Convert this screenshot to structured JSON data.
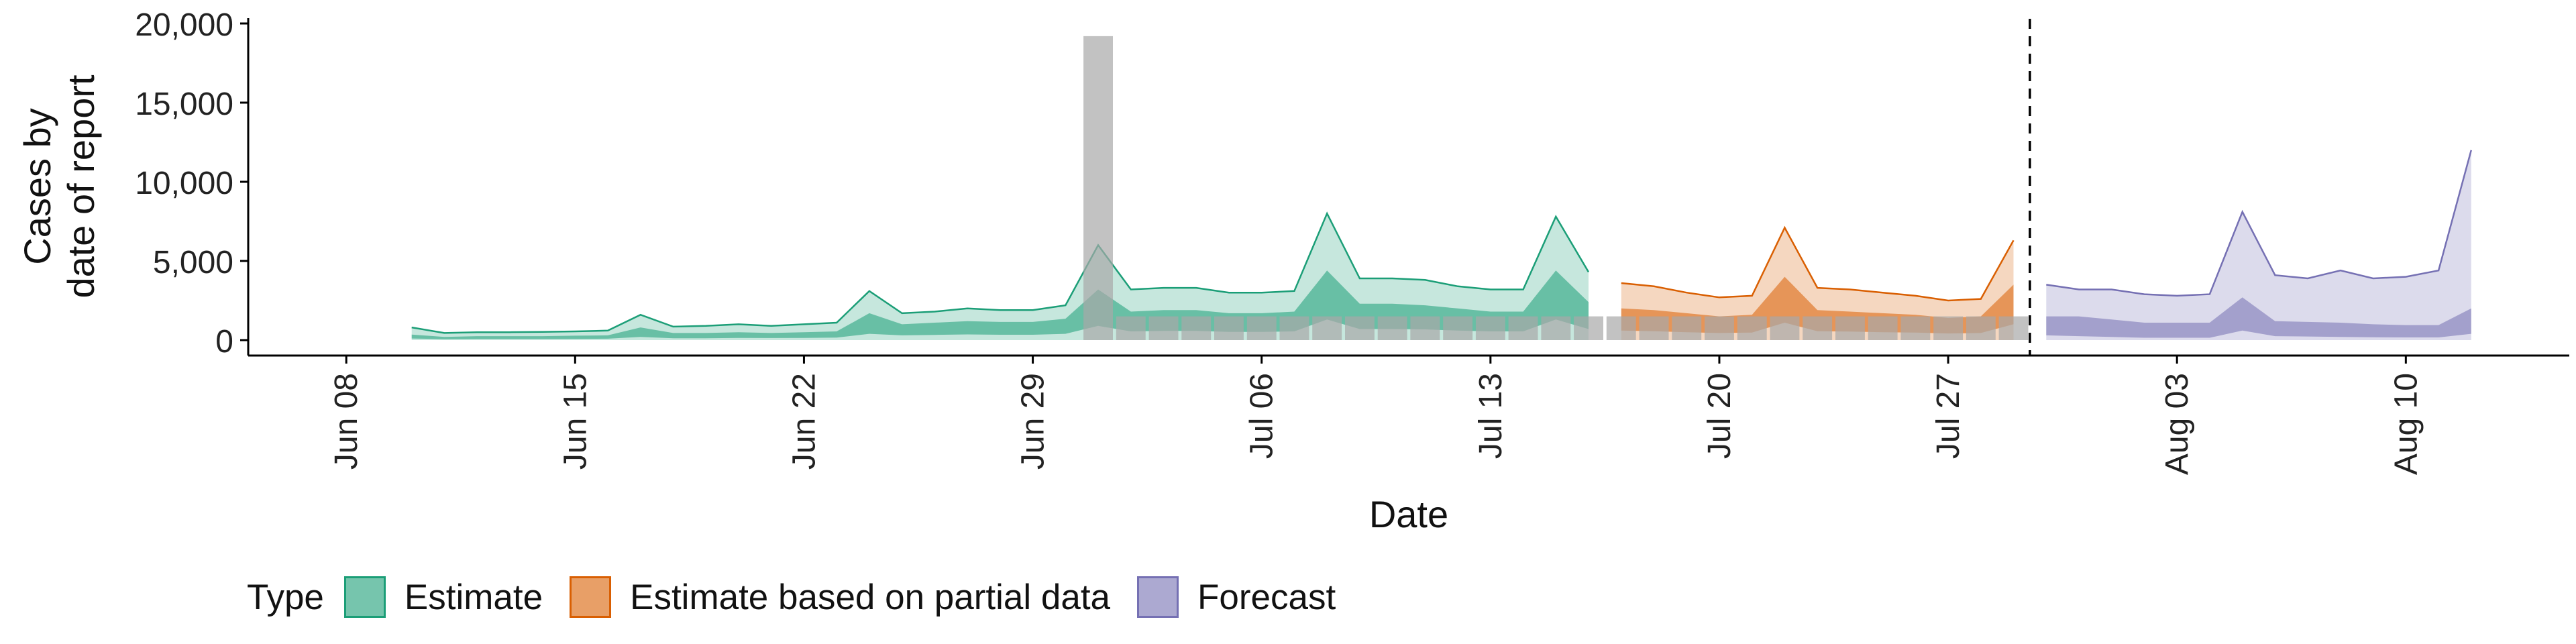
{
  "chart_data": {
    "type": "area",
    "xlabel": "Date",
    "ylabel": [
      "Cases by",
      "date of report"
    ],
    "ylim": [
      0,
      20000
    ],
    "xlim": [
      "2020-06-05",
      "2020-08-15"
    ],
    "y_ticks": [
      0,
      5000,
      10000,
      15000,
      20000
    ],
    "y_tick_labels": [
      "0",
      "5,000",
      "10,000",
      "15,000",
      "20,000"
    ],
    "x_ticks": [
      "2020-06-08",
      "2020-06-15",
      "2020-06-22",
      "2020-06-29",
      "2020-07-06",
      "2020-07-13",
      "2020-07-20",
      "2020-07-27",
      "2020-08-03",
      "2020-08-10"
    ],
    "x_tick_labels": [
      "Jun 08",
      "Jun 15",
      "Jun 22",
      "Jun 29",
      "Jul 06",
      "Jul 13",
      "Jul 20",
      "Jul 27",
      "Aug 03",
      "Aug 10"
    ],
    "grid": false,
    "legend": {
      "title": "Type",
      "position": "bottom",
      "entries": [
        "Estimate",
        "Estimate based on partial data",
        "Forecast"
      ]
    },
    "vline_date": "2020-07-29",
    "observed_bars": {
      "dates": [
        "2020-07-01",
        "2020-07-02",
        "2020-07-03",
        "2020-07-04",
        "2020-07-05",
        "2020-07-06",
        "2020-07-07",
        "2020-07-08",
        "2020-07-09",
        "2020-07-10",
        "2020-07-11",
        "2020-07-12",
        "2020-07-13",
        "2020-07-14",
        "2020-07-15",
        "2020-07-16",
        "2020-07-17",
        "2020-07-18",
        "2020-07-19",
        "2020-07-20",
        "2020-07-21",
        "2020-07-22",
        "2020-07-23",
        "2020-07-24",
        "2020-07-25",
        "2020-07-26",
        "2020-07-27",
        "2020-07-28",
        "2020-07-29"
      ],
      "values": [
        19200,
        1500,
        1500,
        1500,
        1500,
        1500,
        1500,
        1500,
        1500,
        1500,
        1500,
        1500,
        1500,
        1500,
        1500,
        1500,
        1500,
        1500,
        1500,
        1500,
        1500,
        1500,
        1500,
        1500,
        1500,
        1500,
        1500,
        1500,
        1500
      ]
    },
    "series": [
      {
        "name": "Estimate",
        "color": "#1b9e77",
        "dates": [
          "2020-06-10",
          "2020-06-11",
          "2020-06-12",
          "2020-06-13",
          "2020-06-14",
          "2020-06-15",
          "2020-06-16",
          "2020-06-17",
          "2020-06-18",
          "2020-06-19",
          "2020-06-20",
          "2020-06-21",
          "2020-06-22",
          "2020-06-23",
          "2020-06-24",
          "2020-06-25",
          "2020-06-26",
          "2020-06-27",
          "2020-06-28",
          "2020-06-29",
          "2020-06-30",
          "2020-07-01",
          "2020-07-02",
          "2020-07-03",
          "2020-07-04",
          "2020-07-05",
          "2020-07-06",
          "2020-07-07",
          "2020-07-08",
          "2020-07-09",
          "2020-07-10",
          "2020-07-11",
          "2020-07-12",
          "2020-07-13",
          "2020-07-14",
          "2020-07-15",
          "2020-07-16"
        ],
        "upper90": [
          800,
          450,
          500,
          500,
          520,
          550,
          600,
          1600,
          850,
          900,
          1000,
          900,
          1000,
          1100,
          3100,
          1700,
          1800,
          2000,
          1900,
          1900,
          2200,
          6000,
          3200,
          3300,
          3300,
          3000,
          3000,
          3100,
          8000,
          3900,
          3900,
          3800,
          3400,
          3200,
          3200,
          7800,
          4300
        ],
        "upper50": [
          350,
          200,
          250,
          250,
          250,
          280,
          300,
          800,
          450,
          450,
          500,
          450,
          500,
          550,
          1700,
          1000,
          1100,
          1200,
          1150,
          1150,
          1350,
          3200,
          1800,
          1900,
          1900,
          1700,
          1700,
          1800,
          4400,
          2300,
          2300,
          2200,
          2000,
          1800,
          1800,
          4400,
          2400
        ],
        "lower50": [
          100,
          60,
          70,
          70,
          70,
          80,
          90,
          200,
          120,
          120,
          140,
          130,
          140,
          160,
          400,
          300,
          330,
          360,
          340,
          340,
          400,
          900,
          550,
          580,
          580,
          520,
          520,
          550,
          1300,
          700,
          700,
          680,
          600,
          550,
          550,
          1300,
          700
        ],
        "lower90": [
          0,
          0,
          0,
          0,
          0,
          0,
          0,
          0,
          0,
          0,
          0,
          0,
          0,
          0,
          0,
          0,
          0,
          0,
          0,
          0,
          0,
          0,
          0,
          0,
          0,
          0,
          0,
          0,
          0,
          0,
          0,
          0,
          0,
          0,
          0,
          0,
          0
        ]
      },
      {
        "name": "Estimate based on partial data",
        "color": "#d95f02",
        "dates": [
          "2020-07-17",
          "2020-07-18",
          "2020-07-19",
          "2020-07-20",
          "2020-07-21",
          "2020-07-22",
          "2020-07-23",
          "2020-07-24",
          "2020-07-25",
          "2020-07-26",
          "2020-07-27",
          "2020-07-28",
          "2020-07-29"
        ],
        "upper90": [
          3600,
          3400,
          3000,
          2700,
          2800,
          7100,
          3300,
          3200,
          3000,
          2800,
          2500,
          2600,
          6300
        ],
        "upper50": [
          2000,
          1900,
          1700,
          1500,
          1600,
          4000,
          1900,
          1800,
          1700,
          1600,
          1400,
          1500,
          3500
        ],
        "lower50": [
          600,
          560,
          500,
          450,
          480,
          1100,
          560,
          540,
          500,
          480,
          420,
          450,
          1000
        ],
        "lower90": [
          0,
          0,
          0,
          0,
          0,
          0,
          0,
          0,
          0,
          0,
          0,
          0,
          0
        ]
      },
      {
        "name": "Forecast",
        "color": "#7570b3",
        "dates": [
          "2020-07-30",
          "2020-07-31",
          "2020-08-01",
          "2020-08-02",
          "2020-08-03",
          "2020-08-04",
          "2020-08-05",
          "2020-08-06",
          "2020-08-07",
          "2020-08-08",
          "2020-08-09",
          "2020-08-10",
          "2020-08-11",
          "2020-08-12"
        ],
        "upper90": [
          3500,
          3200,
          3200,
          2900,
          2800,
          2900,
          8100,
          4100,
          3900,
          4400,
          3900,
          4000,
          4400,
          12000
        ],
        "upper50": [
          1500,
          1500,
          1300,
          1100,
          1100,
          1100,
          2700,
          1200,
          1150,
          1100,
          1000,
          950,
          950,
          2000
        ],
        "lower50": [
          300,
          250,
          200,
          150,
          150,
          150,
          600,
          250,
          230,
          200,
          180,
          170,
          170,
          400
        ],
        "lower90": [
          0,
          0,
          0,
          0,
          0,
          0,
          0,
          0,
          0,
          0,
          0,
          0,
          0,
          0
        ]
      }
    ]
  }
}
